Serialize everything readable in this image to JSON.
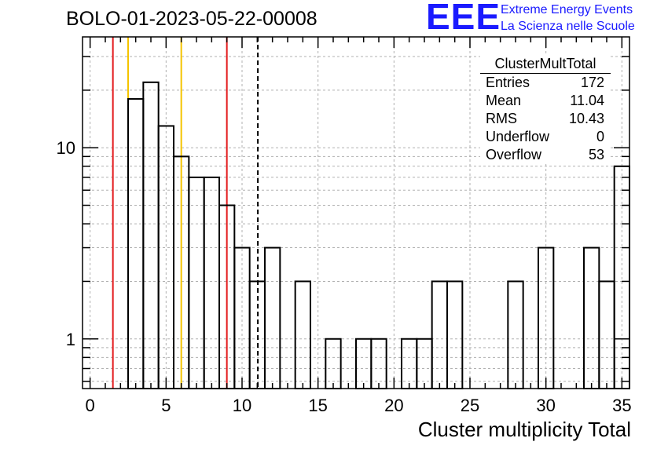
{
  "title": "BOLO-01-2023-05-22-00008",
  "logo": {
    "mark": "EEE",
    "line1": "Extreme Energy Events",
    "line2": "La Scienza nelle Scuole"
  },
  "stats_box": {
    "title": "ClusterMultTotal",
    "rows": [
      {
        "label": "Entries",
        "value": "172"
      },
      {
        "label": "Mean",
        "value": "11.04"
      },
      {
        "label": "RMS",
        "value": "10.43"
      },
      {
        "label": "Underflow",
        "value": "0"
      },
      {
        "label": "Overflow",
        "value": "53"
      }
    ]
  },
  "colors": {
    "histogram": "#000000",
    "red_lines": "#e31a1c",
    "yellow_lines": "#f5c400",
    "grid": "#b0b0b0",
    "logo": "#1a1aff"
  },
  "chart_data": {
    "type": "bar",
    "style": "step-histogram",
    "xlabel": "Cluster multiplicity Total",
    "ylabel": "",
    "xlim": [
      -0.5,
      35.5
    ],
    "ylim": [
      0.55,
      38
    ],
    "yscale": "log",
    "grid": true,
    "x_ticks": [
      0,
      5,
      10,
      15,
      20,
      25,
      30,
      35
    ],
    "y_ticks": [
      1,
      10
    ],
    "bin_edges": [
      -0.5,
      0.5,
      1.5,
      2.5,
      3.5,
      4.5,
      5.5,
      6.5,
      7.5,
      8.5,
      9.5,
      10.5,
      11.5,
      12.5,
      13.5,
      14.5,
      15.5,
      16.5,
      17.5,
      18.5,
      19.5,
      20.5,
      21.5,
      22.5,
      23.5,
      24.5,
      25.5,
      26.5,
      27.5,
      28.5,
      29.5,
      30.5,
      31.5,
      32.5,
      33.5,
      34.5,
      35.5
    ],
    "values": [
      0,
      0,
      0,
      18,
      22,
      13,
      9,
      7,
      7,
      5,
      3,
      2,
      3,
      0,
      2,
      0,
      1,
      0,
      1,
      1,
      0,
      1,
      1,
      2,
      2,
      0,
      0,
      0,
      2,
      0,
      3,
      0,
      0,
      3,
      2,
      8
    ],
    "vertical_lines": [
      {
        "x": 1.5,
        "color": "red"
      },
      {
        "x": 2.5,
        "color": "yellow"
      },
      {
        "x": 6.0,
        "color": "yellow"
      },
      {
        "x": 9.0,
        "color": "red"
      },
      {
        "x": 11.04,
        "color": "black",
        "style": "dashed"
      }
    ]
  }
}
